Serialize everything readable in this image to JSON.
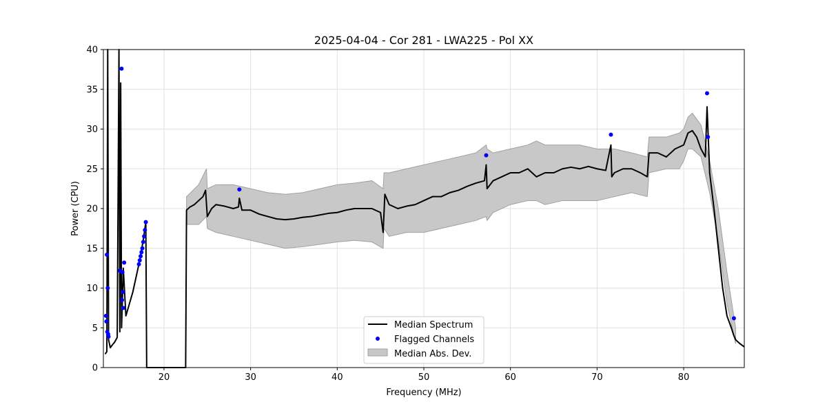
{
  "chart_data": {
    "type": "line",
    "title": "2025-04-04 - Cor 281 - LWA225 - Pol XX",
    "xlabel": "Frequency (MHz)",
    "ylabel": "Power (CPU)",
    "xlim": [
      13,
      87
    ],
    "ylim": [
      0,
      40
    ],
    "xticks": [
      20,
      30,
      40,
      50,
      60,
      70,
      80
    ],
    "yticks": [
      0,
      5,
      10,
      15,
      20,
      25,
      30,
      35,
      40
    ],
    "grid": true,
    "legend_position": "bottom-center",
    "legend": [
      "Median Spectrum",
      "Flagged Channels",
      "Median Abs. Dev."
    ],
    "colors": {
      "median": "#000000",
      "flagged": "#0000ff",
      "mad_fill": "#c8c8c8",
      "mad_edge": "#a0a0a0",
      "grid": "#e0e0e0"
    },
    "series": [
      {
        "name": "Median Spectrum",
        "x": [
          13.2,
          13.4,
          13.5,
          13.6,
          13.8,
          14.0,
          14.3,
          14.6,
          14.8,
          14.9,
          15.0,
          15.1,
          15.3,
          15.6,
          16.0,
          16.4,
          16.8,
          17.2,
          17.6,
          17.9,
          18.0,
          18.1,
          20.0,
          22.0,
          22.5,
          22.6,
          23.0,
          23.5,
          24.0,
          24.5,
          24.8,
          25.0,
          25.5,
          26.0,
          27.0,
          28.0,
          28.6,
          28.7,
          29.0,
          30.0,
          31.0,
          32.0,
          33.0,
          34.0,
          35.0,
          36.0,
          37.0,
          38.0,
          39.0,
          40.0,
          41.0,
          42.0,
          43.0,
          44.0,
          45.0,
          45.3,
          45.5,
          46.0,
          47.0,
          48.0,
          49.0,
          50.0,
          51.0,
          52.0,
          53.0,
          54.0,
          55.0,
          56.0,
          57.0,
          57.2,
          57.3,
          58.0,
          59.0,
          60.0,
          61.0,
          62.0,
          63.0,
          64.0,
          65.0,
          66.0,
          67.0,
          68.0,
          69.0,
          70.0,
          71.0,
          71.6,
          71.7,
          72.0,
          73.0,
          74.0,
          75.0,
          75.8,
          76.0,
          77.0,
          78.0,
          79.0,
          80.0,
          80.5,
          81.0,
          81.5,
          82.0,
          82.5,
          82.7,
          83.0,
          83.5,
          84.0,
          84.5,
          85.0,
          85.5,
          85.8,
          86.0,
          86.5,
          87.0
        ],
        "y": [
          1.7,
          2.0,
          40.0,
          3.5,
          2.5,
          2.8,
          3.2,
          3.8,
          40.0,
          4.5,
          35.8,
          5.0,
          12.5,
          6.5,
          8.0,
          9.5,
          11.5,
          13.5,
          16.0,
          18.3,
          0.0,
          0.0,
          0.0,
          0.0,
          0.0,
          19.8,
          20.2,
          20.5,
          21.0,
          21.5,
          22.3,
          19.0,
          20.0,
          20.5,
          20.3,
          20.0,
          20.2,
          21.3,
          19.8,
          19.8,
          19.3,
          19.0,
          18.7,
          18.6,
          18.7,
          18.9,
          19.0,
          19.2,
          19.4,
          19.5,
          19.8,
          20.0,
          20.0,
          20.0,
          19.5,
          17.0,
          21.8,
          20.5,
          20.0,
          20.3,
          20.5,
          21.0,
          21.5,
          21.5,
          22.0,
          22.3,
          22.8,
          23.2,
          23.5,
          25.5,
          22.5,
          23.5,
          24.0,
          24.5,
          24.5,
          25.0,
          24.0,
          24.5,
          24.5,
          25.0,
          25.2,
          25.0,
          25.3,
          25.0,
          24.8,
          28.0,
          24.0,
          24.5,
          25.0,
          25.0,
          24.5,
          24.0,
          27.0,
          27.0,
          26.5,
          27.5,
          28.0,
          29.5,
          29.8,
          29.0,
          27.5,
          26.5,
          32.8,
          24.5,
          20.0,
          15.0,
          10.0,
          6.5,
          5.0,
          4.0,
          3.5,
          3.0,
          2.6
        ]
      },
      {
        "name": "Flagged Channels",
        "x": [
          13.3,
          13.35,
          13.4,
          13.45,
          13.5,
          13.55,
          13.6,
          14.9,
          15.1,
          15.15,
          15.2,
          15.25,
          15.3,
          15.4,
          17.1,
          17.2,
          17.3,
          17.4,
          17.5,
          17.6,
          17.7,
          17.8,
          17.9,
          28.7,
          57.2,
          71.6,
          82.7,
          82.8,
          85.8
        ],
        "y": [
          6.5,
          5.8,
          14.2,
          4.5,
          10.0,
          4.2,
          3.9,
          12.2,
          37.6,
          8.5,
          12.0,
          9.5,
          7.5,
          13.2,
          13.0,
          13.5,
          14.0,
          14.5,
          15.0,
          15.8,
          16.5,
          17.3,
          18.3,
          22.4,
          26.7,
          29.3,
          34.5,
          29.0,
          6.2
        ]
      },
      {
        "name": "Median Abs. Dev.",
        "x": [
          22.6,
          24.0,
          24.9,
          25.0,
          26.0,
          28.0,
          30.0,
          32.0,
          34.0,
          36.0,
          38.0,
          40.0,
          42.0,
          44.0,
          45.3,
          45.4,
          46.0,
          48.0,
          50.0,
          52.0,
          54.0,
          56.0,
          57.2,
          57.3,
          58.0,
          60.0,
          62.0,
          63.0,
          64.0,
          66.0,
          68.0,
          70.0,
          72.0,
          74.0,
          75.8,
          76.0,
          78.0,
          79.5,
          80.0,
          80.5,
          81.0,
          82.0,
          83.0,
          84.0,
          85.0,
          86.0
        ],
        "upper": [
          21.5,
          23.0,
          25.0,
          22.5,
          23.0,
          23.0,
          22.5,
          22.0,
          21.8,
          22.0,
          22.5,
          23.0,
          23.2,
          23.5,
          22.5,
          24.5,
          24.5,
          25.0,
          25.5,
          26.0,
          26.5,
          27.0,
          28.0,
          27.5,
          27.0,
          27.5,
          28.0,
          28.5,
          28.0,
          28.0,
          28.0,
          27.5,
          27.5,
          27.0,
          26.5,
          29.0,
          29.0,
          29.5,
          30.0,
          31.5,
          32.0,
          30.5,
          26.0,
          20.0,
          12.0,
          5.0
        ],
        "lower": [
          18.0,
          18.0,
          19.0,
          17.5,
          17.0,
          16.5,
          16.0,
          15.5,
          15.0,
          15.2,
          15.5,
          15.8,
          16.0,
          15.8,
          15.0,
          17.5,
          16.5,
          17.0,
          17.0,
          17.5,
          18.0,
          18.5,
          19.0,
          18.5,
          19.5,
          20.5,
          21.0,
          21.0,
          20.5,
          21.0,
          21.0,
          21.0,
          21.5,
          22.0,
          21.5,
          24.5,
          25.0,
          25.0,
          26.0,
          27.5,
          27.5,
          26.5,
          22.0,
          16.0,
          8.0,
          3.0
        ]
      }
    ]
  }
}
